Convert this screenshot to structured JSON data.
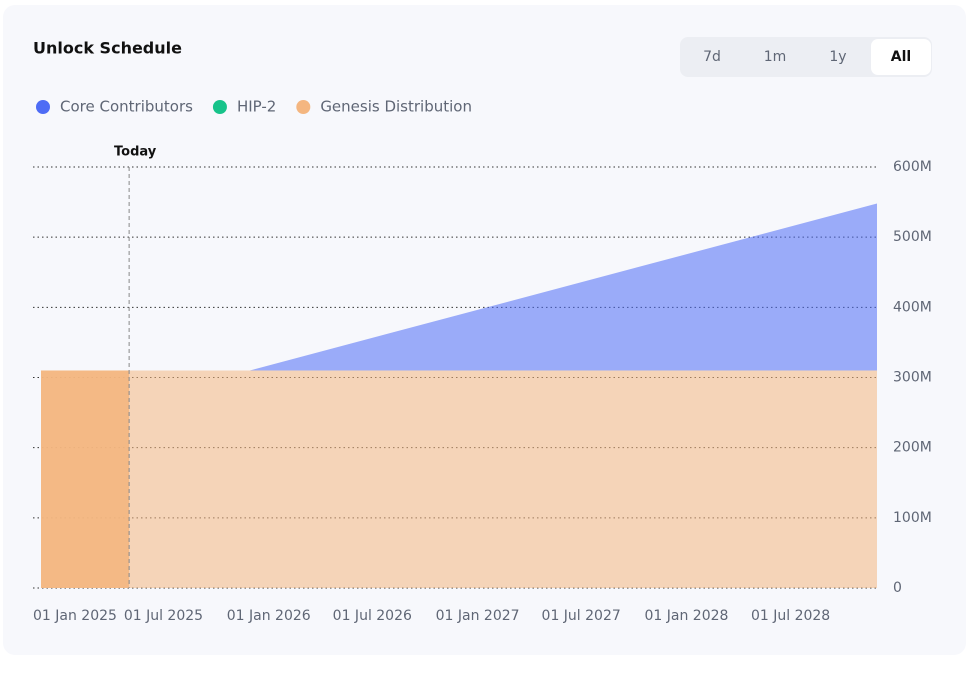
{
  "chart_data": {
    "type": "stacked-area",
    "title": "Unlock Schedule",
    "range_tabs": [
      "7d",
      "1m",
      "1y",
      "All"
    ],
    "selected_tab": 3,
    "x": [
      "2024-11-29",
      "2025-11-29",
      "2028-11-29"
    ],
    "series": [
      {
        "name": "Genesis Distribution",
        "color": "#f4b680",
        "values": [
          310000000,
          310000000,
          310000000
        ]
      },
      {
        "name": "HIP-2",
        "color": "#17c38a",
        "values": [
          0,
          0,
          0
        ]
      },
      {
        "name": "Core Contributors",
        "color": "#4e6cf5",
        "values": [
          0,
          0,
          238000000
        ]
      }
    ],
    "legend_order": [
      2,
      1,
      0
    ],
    "today": {
      "label": "Today",
      "x": "2025-05-02"
    },
    "xlim": [
      "2024-11-29",
      "2028-11-29"
    ],
    "xticks": [
      {
        "value": "2025-01-01",
        "label": "01 Jan 2025"
      },
      {
        "value": "2025-07-01",
        "label": "01 Jul 2025"
      },
      {
        "value": "2026-01-01",
        "label": "01 Jan 2026"
      },
      {
        "value": "2026-07-01",
        "label": "01 Jul 2026"
      },
      {
        "value": "2027-01-01",
        "label": "01 Jan 2027"
      },
      {
        "value": "2027-07-01",
        "label": "01 Jul 2027"
      },
      {
        "value": "2028-01-01",
        "label": "01 Jan 2028"
      },
      {
        "value": "2028-07-01",
        "label": "01 Jul 2028"
      }
    ],
    "ylim": [
      0,
      600000000
    ],
    "yticks": [
      0,
      {
        "value": 100000000,
        "label": "100M"
      },
      {
        "value": 200000000,
        "label": "200M"
      },
      {
        "value": 300000000,
        "label": "300M"
      },
      {
        "value": 400000000,
        "label": "400M"
      },
      {
        "value": 500000000,
        "label": "500M"
      },
      {
        "value": 600000000,
        "label": "600M"
      }
    ],
    "grid": true
  }
}
